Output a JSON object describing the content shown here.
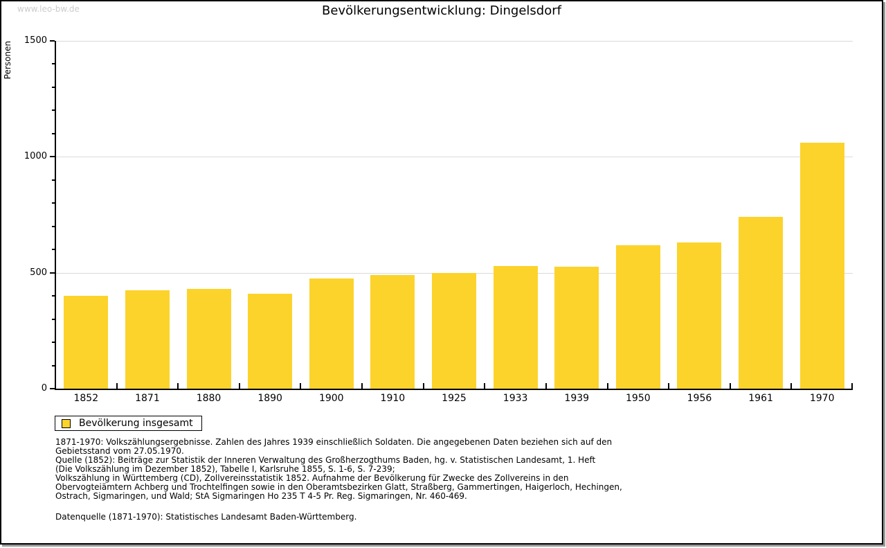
{
  "watermark": "www.leo-bw.de",
  "source_line": "Datenquelle (1871-1970): Statistisches Landesamt Baden-Württemberg.",
  "footnotes": [
    "1871-1970: Volkszählungsergebnisse. Zahlen des Jahres 1939 einschließlich Soldaten. Die angegebenen Daten beziehen sich auf den",
    "Gebietsstand vom 27.05.1970.",
    "Quelle (1852): Beiträge zur Statistik der Inneren Verwaltung des Großherzogthums Baden, hg. v. Statistischen Landesamt, 1. Heft",
    "(Die Volkszählung im Dezember 1852), Tabelle I, Karlsruhe 1855, S. 1-6, S. 7-239;",
    "Volkszählung in Württemberg (CD), Zollvereinsstatistik 1852. Aufnahme der Bevölkerung für Zwecke des Zollvereins in den",
    "Obervogteiämtern Achberg und Trochtelfingen sowie in den Oberamtsbezirken Glatt, Straßberg, Gammertingen, Haigerloch, Hechingen,",
    "Ostrach, Sigmaringen, und Wald; StA Sigmaringen Ho 235 T 4-5 Pr. Reg. Sigmaringen, Nr. 460-469."
  ],
  "chart_data": {
    "type": "bar",
    "title": "Bevölkerungsentwicklung: Dingelsdorf",
    "xlabel": "",
    "ylabel": "Personen",
    "ylim": [
      0,
      1500
    ],
    "ytick_major": 500,
    "ytick_minor": 100,
    "grid": true,
    "bar_color": "#fcd32b",
    "gridline_color": "#dadada",
    "categories": [
      "1852",
      "1871",
      "1880",
      "1890",
      "1900",
      "1910",
      "1925",
      "1933",
      "1939",
      "1950",
      "1956",
      "1961",
      "1970"
    ],
    "values": [
      400,
      425,
      430,
      410,
      475,
      490,
      500,
      530,
      525,
      620,
      630,
      740,
      1060
    ],
    "series_name": "Bevölkerung insgesamt",
    "legend": [
      {
        "label": "Bevölkerung insgesamt",
        "color": "#fcd32b"
      }
    ],
    "legend_position": "bottom-left"
  }
}
